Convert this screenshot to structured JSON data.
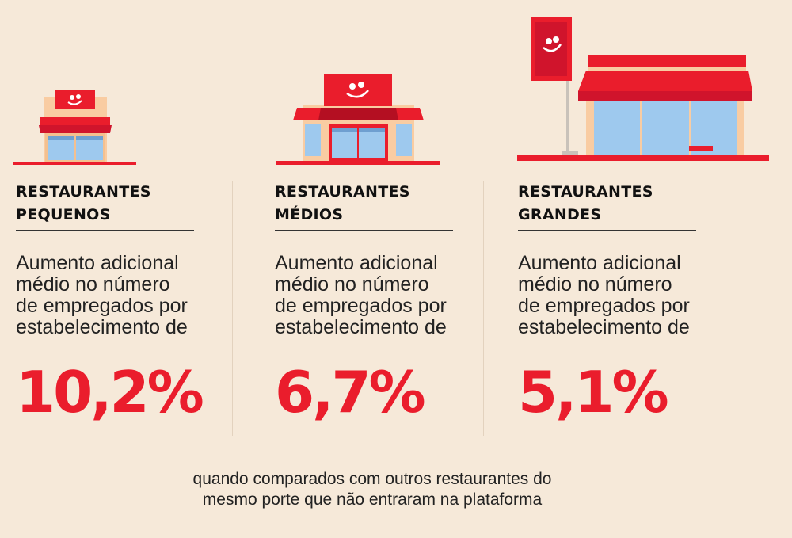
{
  "colors": {
    "accent": "#ea1d2c",
    "background": "#f6e9d9"
  },
  "columns": [
    {
      "title": "RESTAURANTES\nPEQUENOS",
      "description": "Aumento adicional\nmédio no número\nde empregados por\nestabelecimento de",
      "value": "10,2%",
      "icon": "small-restaurant-icon"
    },
    {
      "title": "RESTAURANTES\nMÉDIOS",
      "description": "Aumento adicional\nmédio no número\nde empregados por\nestabelecimento de",
      "value": "6,7%",
      "icon": "medium-restaurant-icon"
    },
    {
      "title": "RESTAURANTES\nGRANDES",
      "description": "Aumento adicional\nmédio no número\nde empregados por\nestabelecimento de",
      "value": "5,1%",
      "icon": "large-restaurant-icon"
    }
  ],
  "footnote": "quando comparados com outros restaurantes do\nmesmo porte que não entraram na plataforma"
}
